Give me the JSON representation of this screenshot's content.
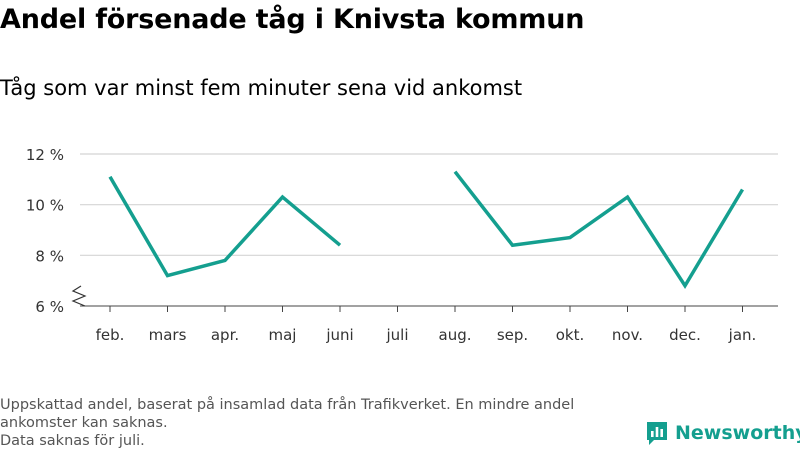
{
  "title": "Andel försenade tåg i Knivsta kommun",
  "subtitle": "Tåg som var minst fem minuter sena vid ankomst",
  "footnote": {
    "line1": "Uppskattad andel, baserat på insamlad data från Trafikverket. En mindre andel ankomster kan saknas.",
    "line2": "Data saknas för juli."
  },
  "brand": {
    "name": "Newsworthy",
    "color": "#149f8f"
  },
  "chart_data": {
    "type": "line",
    "categories": [
      "feb.",
      "mars",
      "apr.",
      "maj",
      "juni",
      "juli",
      "aug.",
      "sep.",
      "okt.",
      "nov.",
      "dec.",
      "jan."
    ],
    "series": [
      {
        "color": "#149f8f",
        "values": [
          11.1,
          7.2,
          7.8,
          10.3,
          8.4,
          null,
          11.3,
          8.4,
          8.7,
          10.3,
          6.8,
          10.6
        ]
      }
    ],
    "y_ticks": [
      6,
      8,
      10,
      12
    ],
    "y_tick_labels": [
      "6 %",
      "8 %",
      "10 %",
      "12 %"
    ],
    "ylim": [
      6,
      12
    ],
    "axis_break": true,
    "grid": true,
    "xlabel": "",
    "ylabel": ""
  }
}
